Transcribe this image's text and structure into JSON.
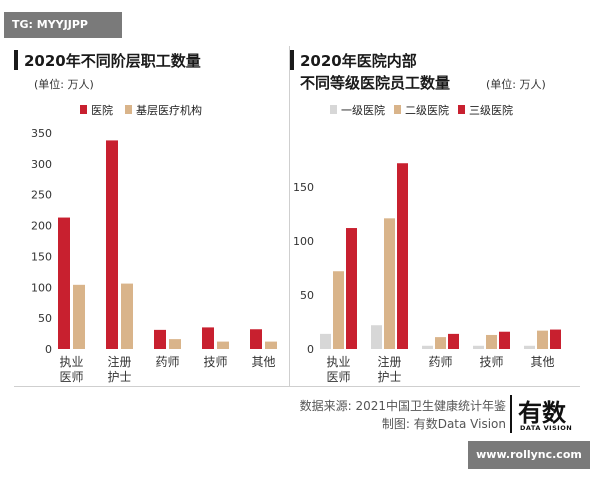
{
  "watermark_tag": "TG: MYYJJPP",
  "footer": {
    "source": "数据来源: 2021中国卫生健康统计年鉴",
    "credit": "制图: 有数Data Vision",
    "logo_text": "有数",
    "logo_sub": "DATA VISION",
    "url": "www.rollync.com"
  },
  "colors": {
    "red": "#c8202f",
    "tan": "#d9b48a",
    "grey": "#d7d7d7"
  },
  "chart_data": [
    {
      "type": "bar",
      "title": "2020年不同阶层职工数量",
      "unit_label": "(单位: 万人)",
      "categories": [
        "执业\n医师",
        "注册\n护士",
        "药师",
        "技师",
        "其他"
      ],
      "series": [
        {
          "name": "医院",
          "color": "#c8202f",
          "values": [
            213,
            338,
            31,
            35,
            32
          ]
        },
        {
          "name": "基层医疗机构",
          "color": "#d9b48a",
          "values": [
            104,
            106,
            16,
            12,
            12
          ]
        }
      ],
      "ylim": [
        0,
        350
      ],
      "yticks": [
        0,
        50,
        100,
        150,
        200,
        250,
        300,
        350
      ],
      "legend": "top"
    },
    {
      "type": "bar",
      "title_line1": "2020年医院内部",
      "title_line2": "不同等级医院员工数量",
      "unit_label": "(单位: 万人)",
      "categories": [
        "执业\n医师",
        "注册\n护士",
        "药师",
        "技师",
        "其他"
      ],
      "series": [
        {
          "name": "一级医院",
          "color": "#d7d7d7",
          "values": [
            14,
            22,
            3,
            3,
            3
          ]
        },
        {
          "name": "二级医院",
          "color": "#d9b48a",
          "values": [
            72,
            121,
            11,
            13,
            17
          ]
        },
        {
          "name": "三级医院",
          "color": "#c8202f",
          "values": [
            112,
            172,
            14,
            16,
            18
          ]
        }
      ],
      "ylim": [
        0,
        200
      ],
      "yticks": [
        0,
        50,
        100,
        150
      ],
      "legend": "top"
    }
  ]
}
